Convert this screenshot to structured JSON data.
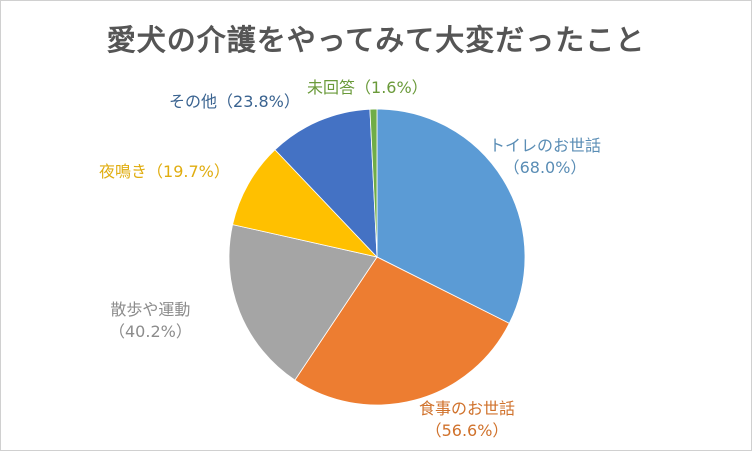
{
  "chart_data": {
    "type": "pie",
    "title": "愛犬の介護をやってみて大変だったこと",
    "slices": [
      {
        "label": "トイレのお世話",
        "value": 68.0,
        "display": "（68.0%）",
        "color": "#5b9bd5",
        "label_color": "#5a8db5"
      },
      {
        "label": "食事のお世話",
        "value": 56.6,
        "display": "（56.6%）",
        "color": "#ed7d31",
        "label_color": "#d0722c"
      },
      {
        "label": "散歩や運動",
        "value": 40.2,
        "display": "（40.2%）",
        "color": "#a5a5a5",
        "label_color": "#8c8c8c"
      },
      {
        "label": "夜鳴き",
        "value": 19.7,
        "display": "（19.7%）",
        "color": "#ffc000",
        "label_color": "#e0ad10"
      },
      {
        "label": "その他",
        "value": 23.8,
        "display": "（23.8%）",
        "color": "#4472c4",
        "label_color": "#3a6390"
      },
      {
        "label": "未回答",
        "value": 1.6,
        "display": "（1.6%）",
        "color": "#70ad47",
        "label_color": "#6a9a3a"
      }
    ],
    "legend": "none",
    "start": "top",
    "direction": "clockwise"
  }
}
